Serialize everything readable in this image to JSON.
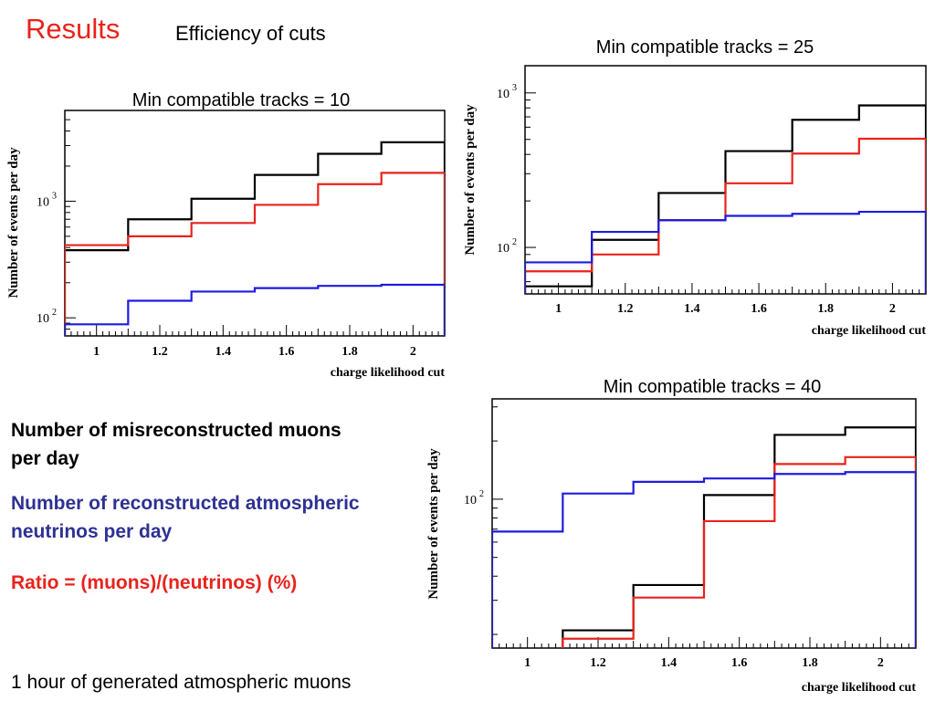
{
  "header": {
    "title": "Results",
    "subtitle": "Efficiency of cuts"
  },
  "legend": {
    "muons": "Number of misreconstructed muons per day",
    "neutrinos": "Number of reconstructed atmospheric neutrinos per day",
    "ratio": "Ratio = (muons)/(neutrinos) (%)"
  },
  "footnote": "1 hour of generated atmospheric muons",
  "colors": {
    "muons": "#000000",
    "neutrinos": "#1c1ce0",
    "ratio": "#e8231c",
    "title_accent": "#e8231c"
  },
  "chart_data": [
    {
      "id": "tracks10",
      "type": "line",
      "step": true,
      "title": "Min compatible tracks = 10",
      "xlabel": "charge likelihood cut",
      "ylabel": "Number of events per day",
      "xlim": [
        0.9,
        2.1
      ],
      "ylim": [
        70,
        6000
      ],
      "yscale": "log",
      "x_ticks": [
        1,
        1.2,
        1.4,
        1.6,
        1.8,
        2
      ],
      "x_tick_labels": [
        "1",
        "1.2",
        "1.4",
        "1.6",
        "1.8",
        "2"
      ],
      "y_ticks": [
        100,
        1000
      ],
      "y_tick_labels": [
        [
          "10",
          "2"
        ],
        [
          "10",
          "3"
        ]
      ],
      "bin_edges": [
        0.9,
        1.1,
        1.3,
        1.5,
        1.7,
        1.9,
        2.1
      ],
      "series": [
        {
          "key": "muons",
          "values": [
            380,
            700,
            1050,
            1680,
            2550,
            3200
          ]
        },
        {
          "key": "ratio",
          "values": [
            420,
            500,
            650,
            930,
            1400,
            1750
          ]
        },
        {
          "key": "neutrinos",
          "values": [
            88,
            140,
            168,
            180,
            188,
            192
          ]
        }
      ]
    },
    {
      "id": "tracks25",
      "type": "line",
      "step": true,
      "title": "Min compatible tracks = 25",
      "xlabel": "charge likelihood cut",
      "ylabel": "Number of events per day",
      "xlim": [
        0.9,
        2.1
      ],
      "ylim": [
        50,
        1500
      ],
      "yscale": "log",
      "x_ticks": [
        1,
        1.2,
        1.4,
        1.6,
        1.8,
        2
      ],
      "x_tick_labels": [
        "1",
        "1.2",
        "1.4",
        "1.6",
        "1.8",
        "2"
      ],
      "y_ticks": [
        100,
        1000
      ],
      "y_tick_labels": [
        [
          "10",
          "2"
        ],
        [
          "10",
          "3"
        ]
      ],
      "bin_edges": [
        0.9,
        1.1,
        1.3,
        1.5,
        1.7,
        1.9,
        2.1
      ],
      "series": [
        {
          "key": "muons",
          "values": [
            56,
            112,
            225,
            420,
            670,
            830
          ]
        },
        {
          "key": "ratio",
          "values": [
            70,
            90,
            150,
            260,
            405,
            505
          ]
        },
        {
          "key": "neutrinos",
          "values": [
            80,
            126,
            150,
            160,
            165,
            170
          ]
        }
      ]
    },
    {
      "id": "tracks40",
      "type": "line",
      "step": true,
      "title": "Min compatible tracks = 40",
      "xlabel": "charge likelihood cut",
      "ylabel": "Number of events per day",
      "xlim": [
        0.9,
        2.1
      ],
      "ylim": [
        17,
        330
      ],
      "yscale": "log",
      "x_ticks": [
        1,
        1.2,
        1.4,
        1.6,
        1.8,
        2
      ],
      "x_tick_labels": [
        "1",
        "1.2",
        "1.4",
        "1.6",
        "1.8",
        "2"
      ],
      "y_ticks": [
        100
      ],
      "y_tick_labels": [
        [
          "10",
          "2"
        ]
      ],
      "bin_edges": [
        0.9,
        1.1,
        1.3,
        1.5,
        1.7,
        1.9,
        2.1
      ],
      "series": [
        {
          "key": "muons",
          "values": [
            0,
            21,
            36,
            105,
            215,
            235
          ]
        },
        {
          "key": "ratio",
          "values": [
            0,
            19,
            31,
            77,
            152,
            165
          ]
        },
        {
          "key": "neutrinos",
          "values": [
            68,
            107,
            123,
            128,
            135,
            138
          ]
        }
      ]
    }
  ]
}
